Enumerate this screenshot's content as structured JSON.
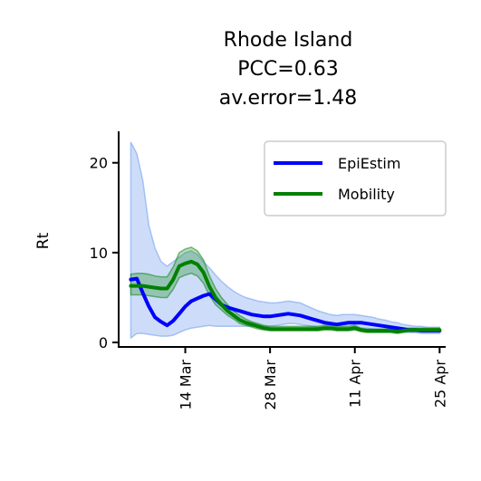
{
  "chart_data": {
    "type": "line",
    "title_lines": [
      "Rhode Island",
      "PCC=0.63",
      "av.error=1.48"
    ],
    "xlabel": "",
    "ylabel": "Rt",
    "ylim": [
      -0.5,
      23.5
    ],
    "yticks": [
      0,
      10,
      20
    ],
    "xlim": [
      "2020-03-03",
      "2020-04-26"
    ],
    "xticks": [
      {
        "date": "2020-03-14",
        "label": "14 Mar"
      },
      {
        "date": "2020-03-28",
        "label": "28 Mar"
      },
      {
        "date": "2020-04-11",
        "label": "11 Apr"
      },
      {
        "date": "2020-04-25",
        "label": "25 Apr"
      }
    ],
    "grid": false,
    "legend_position": "top-right",
    "series": [
      {
        "name": "EpiEstim",
        "color": "#0000ff",
        "band_color": "#6495ed",
        "x": [
          "2020-03-05",
          "2020-03-06",
          "2020-03-07",
          "2020-03-08",
          "2020-03-09",
          "2020-03-10",
          "2020-03-11",
          "2020-03-12",
          "2020-03-13",
          "2020-03-14",
          "2020-03-15",
          "2020-03-16",
          "2020-03-17",
          "2020-03-18",
          "2020-03-19",
          "2020-03-20",
          "2020-03-21",
          "2020-03-22",
          "2020-03-23",
          "2020-03-24",
          "2020-03-25",
          "2020-03-26",
          "2020-03-27",
          "2020-03-28",
          "2020-03-29",
          "2020-03-30",
          "2020-03-31",
          "2020-04-01",
          "2020-04-02",
          "2020-04-03",
          "2020-04-04",
          "2020-04-05",
          "2020-04-06",
          "2020-04-07",
          "2020-04-08",
          "2020-04-09",
          "2020-04-10",
          "2020-04-11",
          "2020-04-12",
          "2020-04-13",
          "2020-04-14",
          "2020-04-15",
          "2020-04-16",
          "2020-04-17",
          "2020-04-18",
          "2020-04-19",
          "2020-04-20",
          "2020-04-21",
          "2020-04-22",
          "2020-04-23",
          "2020-04-24",
          "2020-04-25"
        ],
        "values": [
          7.0,
          7.1,
          5.5,
          4.0,
          2.8,
          2.3,
          1.9,
          2.4,
          3.2,
          4.0,
          4.6,
          4.9,
          5.2,
          5.4,
          4.8,
          4.2,
          3.9,
          3.7,
          3.5,
          3.3,
          3.1,
          3.0,
          2.9,
          2.9,
          3.0,
          3.1,
          3.2,
          3.1,
          3.0,
          2.8,
          2.6,
          2.4,
          2.2,
          2.1,
          2.0,
          2.1,
          2.2,
          2.2,
          2.2,
          2.1,
          2.0,
          1.9,
          1.8,
          1.7,
          1.6,
          1.5,
          1.4,
          1.4,
          1.3,
          1.3,
          1.3,
          1.3
        ],
        "lower": [
          0.5,
          1.0,
          1.0,
          0.9,
          0.8,
          0.7,
          0.7,
          0.8,
          1.1,
          1.4,
          1.6,
          1.7,
          1.8,
          1.9,
          1.8,
          1.8,
          1.8,
          1.8,
          1.8,
          1.8,
          1.8,
          1.8,
          1.8,
          1.8,
          1.9,
          2.0,
          2.1,
          2.1,
          2.0,
          1.9,
          1.8,
          1.7,
          1.6,
          1.6,
          1.5,
          1.6,
          1.6,
          1.6,
          1.6,
          1.6,
          1.5,
          1.4,
          1.4,
          1.3,
          1.3,
          1.2,
          1.1,
          1.1,
          1.0,
          1.0,
          1.0,
          1.0
        ],
        "upper": [
          22.3,
          21.0,
          18.0,
          13.0,
          10.5,
          9.0,
          8.5,
          9.0,
          9.5,
          10.0,
          10.2,
          9.8,
          9.0,
          8.3,
          7.5,
          6.8,
          6.2,
          5.7,
          5.3,
          5.0,
          4.8,
          4.6,
          4.5,
          4.4,
          4.4,
          4.5,
          4.6,
          4.5,
          4.4,
          4.1,
          3.8,
          3.5,
          3.3,
          3.1,
          3.0,
          3.1,
          3.1,
          3.1,
          3.0,
          2.9,
          2.8,
          2.6,
          2.5,
          2.3,
          2.2,
          2.0,
          1.9,
          1.8,
          1.8,
          1.7,
          1.7,
          1.7
        ]
      },
      {
        "name": "Mobility",
        "color": "#008000",
        "band_color": "#008000",
        "x": [
          "2020-03-05",
          "2020-03-06",
          "2020-03-07",
          "2020-03-08",
          "2020-03-09",
          "2020-03-10",
          "2020-03-11",
          "2020-03-12",
          "2020-03-13",
          "2020-03-14",
          "2020-03-15",
          "2020-03-16",
          "2020-03-17",
          "2020-03-18",
          "2020-03-19",
          "2020-03-20",
          "2020-03-21",
          "2020-03-22",
          "2020-03-23",
          "2020-03-24",
          "2020-03-25",
          "2020-03-26",
          "2020-03-27",
          "2020-03-28",
          "2020-03-29",
          "2020-03-30",
          "2020-03-31",
          "2020-04-01",
          "2020-04-02",
          "2020-04-03",
          "2020-04-04",
          "2020-04-05",
          "2020-04-06",
          "2020-04-07",
          "2020-04-08",
          "2020-04-09",
          "2020-04-10",
          "2020-04-11",
          "2020-04-12",
          "2020-04-13",
          "2020-04-14",
          "2020-04-15",
          "2020-04-16",
          "2020-04-17",
          "2020-04-18",
          "2020-04-19",
          "2020-04-20",
          "2020-04-21",
          "2020-04-22",
          "2020-04-23",
          "2020-04-24",
          "2020-04-25"
        ],
        "values": [
          6.3,
          6.3,
          6.3,
          6.2,
          6.1,
          6.0,
          6.0,
          7.0,
          8.5,
          8.8,
          9.0,
          8.7,
          7.8,
          6.2,
          5.0,
          4.2,
          3.5,
          3.0,
          2.5,
          2.2,
          2.0,
          1.8,
          1.6,
          1.5,
          1.5,
          1.5,
          1.5,
          1.5,
          1.5,
          1.5,
          1.5,
          1.5,
          1.6,
          1.6,
          1.5,
          1.5,
          1.5,
          1.6,
          1.4,
          1.3,
          1.3,
          1.3,
          1.3,
          1.3,
          1.2,
          1.3,
          1.4,
          1.4,
          1.4,
          1.4,
          1.4,
          1.4
        ],
        "lower": [
          5.3,
          5.3,
          5.3,
          5.2,
          5.1,
          5.0,
          5.0,
          5.9,
          7.2,
          7.5,
          7.7,
          7.4,
          6.6,
          5.2,
          4.2,
          3.6,
          3.0,
          2.6,
          2.1,
          1.9,
          1.7,
          1.5,
          1.4,
          1.3,
          1.3,
          1.3,
          1.3,
          1.3,
          1.3,
          1.3,
          1.3,
          1.3,
          1.4,
          1.4,
          1.3,
          1.3,
          1.3,
          1.4,
          1.2,
          1.1,
          1.1,
          1.1,
          1.1,
          1.1,
          1.0,
          1.1,
          1.2,
          1.2,
          1.2,
          1.2,
          1.2,
          1.2
        ],
        "upper": [
          7.6,
          7.7,
          7.7,
          7.6,
          7.4,
          7.3,
          7.3,
          8.4,
          10.0,
          10.4,
          10.6,
          10.2,
          9.2,
          7.4,
          6.0,
          5.0,
          4.2,
          3.5,
          3.0,
          2.6,
          2.3,
          2.1,
          1.9,
          1.8,
          1.8,
          1.8,
          1.8,
          1.8,
          1.8,
          1.8,
          1.8,
          1.8,
          1.9,
          1.9,
          1.8,
          1.8,
          1.8,
          1.9,
          1.6,
          1.5,
          1.5,
          1.5,
          1.5,
          1.5,
          1.4,
          1.5,
          1.6,
          1.6,
          1.6,
          1.6,
          1.6,
          1.6
        ]
      }
    ]
  }
}
